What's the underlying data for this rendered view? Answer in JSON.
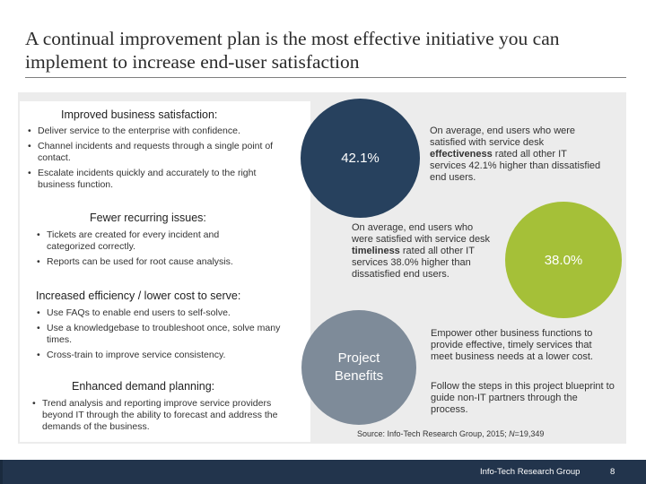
{
  "title": "A continual improvement plan is the most effective initiative you can implement to increase end-user satisfaction",
  "left": {
    "sections": [
      {
        "heading": "Improved business satisfaction:",
        "bullets": [
          "Deliver service to the enterprise with confidence.",
          "Channel incidents and requests through a single point of contact.",
          "Escalate incidents quickly and accurately to the right business function."
        ]
      },
      {
        "heading": "Fewer recurring issues:",
        "bullets": [
          "Tickets are created for every incident and categorized correctly.",
          "Reports can be used for root cause analysis."
        ]
      },
      {
        "heading": "Increased efficiency / lower cost to serve:",
        "bullets": [
          "Use FAQs to enable end users to self-solve.",
          "Use a knowledgebase to troubleshoot once, solve many times.",
          "Cross-train to improve service consistency."
        ]
      },
      {
        "heading": "Enhanced demand planning:",
        "bullets": [
          "Trend analysis and reporting improve service providers beyond IT through the ability to forecast and address the demands of the business."
        ]
      }
    ]
  },
  "stats": {
    "effectiveness": {
      "value": "42.1%",
      "pre": "On average, end users who were satisfied with service desk ",
      "bold": "effectiveness",
      "post": " rated all other IT services 42.1% higher than dissatisfied end users."
    },
    "timeliness": {
      "value": "38.0%",
      "pre": "On average, end users who were satisfied with service desk ",
      "bold": "timeliness",
      "post": " rated all other IT services 38.0% higher than dissatisfied end users."
    },
    "benefits": {
      "label_line1": "Project",
      "label_line2": "Benefits",
      "text1": "Empower other business functions to provide effective, timely services that meet business needs at a lower cost.",
      "text2": "Follow the steps in this project blueprint to guide non-IT partners through the process."
    }
  },
  "source": {
    "prefix": "Source: Info-Tech Research Group, 2015; ",
    "n_label": "N",
    "n_value": "=19,349"
  },
  "footer": {
    "org": "Info-Tech Research Group",
    "page": "8"
  },
  "colors": {
    "navy": "#27415e",
    "green": "#a5c038",
    "slate": "#7e8b99",
    "footer": "#22344c"
  }
}
